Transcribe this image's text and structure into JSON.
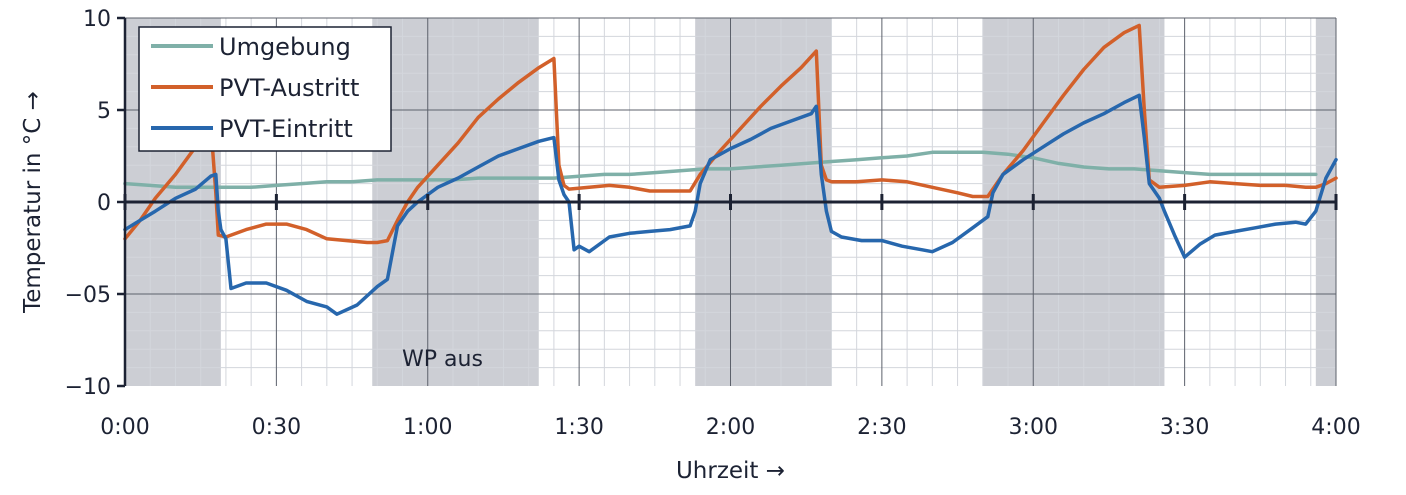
{
  "chart_data": {
    "type": "line",
    "title": "",
    "xlabel": "Uhrzeit →",
    "ylabel": "Temperatur in °C →",
    "xlim": [
      0,
      240
    ],
    "ylim": [
      -10,
      10
    ],
    "y_ticks": [
      10,
      5,
      0,
      -5,
      -10
    ],
    "y_tick_labels": [
      "10",
      "5",
      "0",
      "−05",
      "−10"
    ],
    "x_ticks": [
      0,
      30,
      60,
      90,
      120,
      150,
      180,
      210,
      240
    ],
    "x_tick_labels": [
      "0:00",
      "0:30",
      "1:00",
      "1:30",
      "2:00",
      "2:30",
      "3:00",
      "3:30",
      "4:00"
    ],
    "grid": true,
    "legend_position": "top-left",
    "shaded_periods": [
      [
        0,
        19
      ],
      [
        49,
        82
      ],
      [
        113,
        140
      ],
      [
        170,
        206
      ],
      [
        236,
        240
      ]
    ],
    "annotation": "WP aus",
    "series": [
      {
        "name": "Umgebung",
        "color": "#7fb0a8",
        "points": [
          [
            0,
            1.0
          ],
          [
            5,
            0.9
          ],
          [
            10,
            0.8
          ],
          [
            15,
            0.8
          ],
          [
            20,
            0.8
          ],
          [
            25,
            0.8
          ],
          [
            30,
            0.9
          ],
          [
            35,
            1.0
          ],
          [
            40,
            1.1
          ],
          [
            45,
            1.1
          ],
          [
            50,
            1.2
          ],
          [
            55,
            1.2
          ],
          [
            60,
            1.2
          ],
          [
            65,
            1.2
          ],
          [
            70,
            1.3
          ],
          [
            75,
            1.3
          ],
          [
            80,
            1.3
          ],
          [
            85,
            1.3
          ],
          [
            90,
            1.4
          ],
          [
            95,
            1.5
          ],
          [
            100,
            1.5
          ],
          [
            105,
            1.6
          ],
          [
            110,
            1.7
          ],
          [
            115,
            1.8
          ],
          [
            120,
            1.8
          ],
          [
            125,
            1.9
          ],
          [
            130,
            2.0
          ],
          [
            135,
            2.1
          ],
          [
            140,
            2.2
          ],
          [
            145,
            2.3
          ],
          [
            150,
            2.4
          ],
          [
            155,
            2.5
          ],
          [
            160,
            2.7
          ],
          [
            165,
            2.7
          ],
          [
            170,
            2.7
          ],
          [
            175,
            2.6
          ],
          [
            180,
            2.4
          ],
          [
            185,
            2.1
          ],
          [
            190,
            1.9
          ],
          [
            195,
            1.8
          ],
          [
            200,
            1.8
          ],
          [
            205,
            1.7
          ],
          [
            210,
            1.6
          ],
          [
            215,
            1.5
          ],
          [
            220,
            1.5
          ],
          [
            225,
            1.5
          ],
          [
            230,
            1.5
          ],
          [
            236,
            1.5
          ]
        ]
      },
      {
        "name": "PVT-Austritt",
        "color": "#d2602a",
        "points": [
          [
            0,
            -2.0
          ],
          [
            3,
            -1.0
          ],
          [
            6,
            0.2
          ],
          [
            10,
            1.5
          ],
          [
            14,
            3.0
          ],
          [
            17,
            4.2
          ],
          [
            18,
            0.5
          ],
          [
            18.5,
            -1.8
          ],
          [
            20,
            -1.9
          ],
          [
            24,
            -1.5
          ],
          [
            28,
            -1.2
          ],
          [
            32,
            -1.2
          ],
          [
            36,
            -1.5
          ],
          [
            40,
            -2.0
          ],
          [
            44,
            -2.1
          ],
          [
            48,
            -2.2
          ],
          [
            50,
            -2.2
          ],
          [
            52,
            -2.1
          ],
          [
            54,
            -1.0
          ],
          [
            56,
            0.0
          ],
          [
            58,
            0.8
          ],
          [
            62,
            2.0
          ],
          [
            66,
            3.2
          ],
          [
            70,
            4.6
          ],
          [
            74,
            5.6
          ],
          [
            78,
            6.5
          ],
          [
            82,
            7.3
          ],
          [
            85,
            7.8
          ],
          [
            86,
            2.0
          ],
          [
            87,
            0.9
          ],
          [
            88,
            0.7
          ],
          [
            92,
            0.8
          ],
          [
            96,
            0.9
          ],
          [
            100,
            0.8
          ],
          [
            104,
            0.6
          ],
          [
            108,
            0.6
          ],
          [
            112,
            0.6
          ],
          [
            114,
            1.5
          ],
          [
            118,
            2.8
          ],
          [
            122,
            4.0
          ],
          [
            126,
            5.2
          ],
          [
            130,
            6.3
          ],
          [
            134,
            7.3
          ],
          [
            137,
            8.2
          ],
          [
            138,
            2.0
          ],
          [
            139,
            1.2
          ],
          [
            140,
            1.1
          ],
          [
            145,
            1.1
          ],
          [
            150,
            1.2
          ],
          [
            155,
            1.1
          ],
          [
            160,
            0.8
          ],
          [
            165,
            0.5
          ],
          [
            168,
            0.3
          ],
          [
            171,
            0.3
          ],
          [
            174,
            1.5
          ],
          [
            178,
            2.8
          ],
          [
            182,
            4.3
          ],
          [
            186,
            5.8
          ],
          [
            190,
            7.2
          ],
          [
            194,
            8.4
          ],
          [
            198,
            9.2
          ],
          [
            201,
            9.6
          ],
          [
            202,
            5.0
          ],
          [
            203,
            1.2
          ],
          [
            205,
            0.8
          ],
          [
            210,
            0.9
          ],
          [
            215,
            1.1
          ],
          [
            220,
            1.0
          ],
          [
            225,
            0.9
          ],
          [
            230,
            0.9
          ],
          [
            234,
            0.8
          ],
          [
            236,
            0.8
          ],
          [
            238,
            1.0
          ],
          [
            240,
            1.3
          ]
        ]
      },
      {
        "name": "PVT-Eintritt",
        "color": "#2767ad",
        "points": [
          [
            0,
            -1.5
          ],
          [
            3,
            -1.0
          ],
          [
            6,
            -0.5
          ],
          [
            10,
            0.2
          ],
          [
            14,
            0.7
          ],
          [
            17,
            1.4
          ],
          [
            18,
            1.5
          ],
          [
            18.5,
            -0.5
          ],
          [
            19,
            -1.5
          ],
          [
            20,
            -2.0
          ],
          [
            21,
            -4.7
          ],
          [
            24,
            -4.4
          ],
          [
            28,
            -4.4
          ],
          [
            32,
            -4.8
          ],
          [
            36,
            -5.4
          ],
          [
            40,
            -5.7
          ],
          [
            42,
            -6.1
          ],
          [
            46,
            -5.6
          ],
          [
            50,
            -4.6
          ],
          [
            52,
            -4.2
          ],
          [
            54,
            -1.3
          ],
          [
            56,
            -0.5
          ],
          [
            58,
            0.0
          ],
          [
            62,
            0.8
          ],
          [
            66,
            1.3
          ],
          [
            70,
            1.9
          ],
          [
            74,
            2.5
          ],
          [
            78,
            2.9
          ],
          [
            82,
            3.3
          ],
          [
            85,
            3.5
          ],
          [
            86,
            1.2
          ],
          [
            87,
            0.4
          ],
          [
            88,
            0.0
          ],
          [
            89,
            -2.6
          ],
          [
            90,
            -2.4
          ],
          [
            92,
            -2.7
          ],
          [
            96,
            -1.9
          ],
          [
            100,
            -1.7
          ],
          [
            104,
            -1.6
          ],
          [
            108,
            -1.5
          ],
          [
            112,
            -1.3
          ],
          [
            113,
            -0.5
          ],
          [
            114,
            1.0
          ],
          [
            116,
            2.3
          ],
          [
            120,
            2.9
          ],
          [
            124,
            3.4
          ],
          [
            128,
            4.0
          ],
          [
            132,
            4.4
          ],
          [
            136,
            4.8
          ],
          [
            137,
            5.2
          ],
          [
            138,
            1.5
          ],
          [
            139,
            -0.5
          ],
          [
            140,
            -1.6
          ],
          [
            142,
            -1.9
          ],
          [
            146,
            -2.1
          ],
          [
            150,
            -2.1
          ],
          [
            154,
            -2.4
          ],
          [
            158,
            -2.6
          ],
          [
            160,
            -2.7
          ],
          [
            164,
            -2.2
          ],
          [
            168,
            -1.4
          ],
          [
            171,
            -0.8
          ],
          [
            172,
            0.5
          ],
          [
            174,
            1.5
          ],
          [
            178,
            2.3
          ],
          [
            182,
            3.0
          ],
          [
            186,
            3.7
          ],
          [
            190,
            4.3
          ],
          [
            194,
            4.8
          ],
          [
            198,
            5.4
          ],
          [
            201,
            5.8
          ],
          [
            202,
            3.5
          ],
          [
            203,
            1.0
          ],
          [
            205,
            0.2
          ],
          [
            206,
            -0.5
          ],
          [
            208,
            -1.8
          ],
          [
            210,
            -3.0
          ],
          [
            213,
            -2.3
          ],
          [
            216,
            -1.8
          ],
          [
            220,
            -1.6
          ],
          [
            224,
            -1.4
          ],
          [
            228,
            -1.2
          ],
          [
            232,
            -1.1
          ],
          [
            234,
            -1.2
          ],
          [
            236,
            -0.5
          ],
          [
            238,
            1.3
          ],
          [
            240,
            2.3
          ]
        ]
      }
    ]
  }
}
